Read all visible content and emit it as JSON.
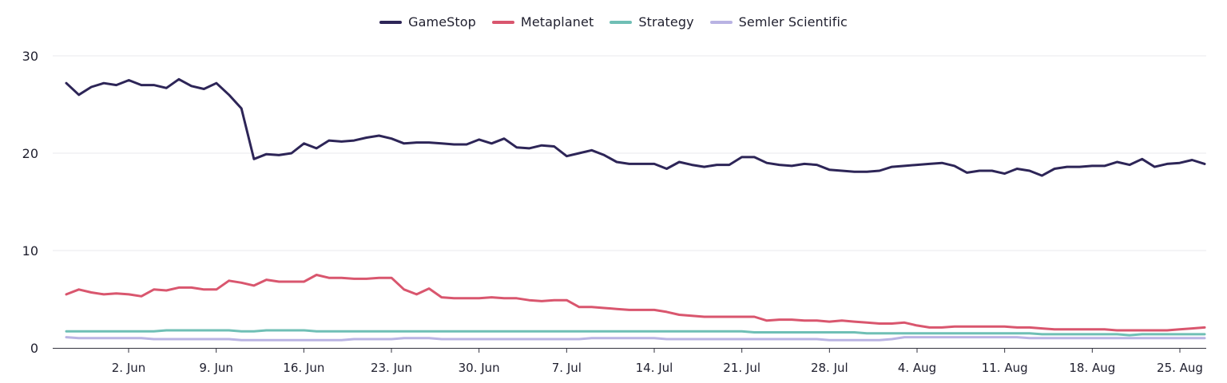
{
  "legend": [
    {
      "name": "GameStop",
      "color": "#2d2557"
    },
    {
      "name": "Metaplanet",
      "color": "#d9566e"
    },
    {
      "name": "Strategy",
      "color": "#6fbfb5"
    },
    {
      "name": "Semler Scientific",
      "color": "#b9b3e3"
    }
  ],
  "chart_data": {
    "type": "line",
    "title": "",
    "xlabel": "",
    "ylabel": "",
    "ylim": [
      0,
      30
    ],
    "yticks": [
      0,
      10,
      20,
      30
    ],
    "grid": true,
    "legend_position": "top-center",
    "x_start": "2025-05-28",
    "x_ticks": [
      {
        "label": "2. Jun",
        "date": "2025-06-02"
      },
      {
        "label": "9. Jun",
        "date": "2025-06-09"
      },
      {
        "label": "16. Jun",
        "date": "2025-06-16"
      },
      {
        "label": "23. Jun",
        "date": "2025-06-23"
      },
      {
        "label": "30. Jun",
        "date": "2025-06-30"
      },
      {
        "label": "7. Jul",
        "date": "2025-07-07"
      },
      {
        "label": "14. Jul",
        "date": "2025-07-14"
      },
      {
        "label": "21. Jul",
        "date": "2025-07-21"
      },
      {
        "label": "28. Jul",
        "date": "2025-07-28"
      },
      {
        "label": "4. Aug",
        "date": "2025-08-04"
      },
      {
        "label": "11. Aug",
        "date": "2025-08-11"
      },
      {
        "label": "18. Aug",
        "date": "2025-08-18"
      },
      {
        "label": "25. Aug",
        "date": "2025-08-25"
      }
    ],
    "series": [
      {
        "name": "GameStop",
        "color": "#2d2557",
        "values": [
          27.2,
          26.0,
          26.8,
          27.2,
          27.0,
          27.5,
          27.0,
          27.0,
          26.7,
          27.6,
          26.9,
          26.6,
          27.2,
          26.0,
          24.6,
          19.4,
          19.9,
          19.8,
          20.0,
          21.0,
          20.5,
          21.3,
          21.2,
          21.3,
          21.6,
          21.8,
          21.5,
          21.0,
          21.1,
          21.1,
          21.0,
          20.9,
          20.9,
          21.4,
          21.0,
          21.5,
          20.6,
          20.5,
          20.8,
          20.7,
          19.7,
          20.0,
          20.3,
          19.8,
          19.1,
          18.9,
          18.9,
          18.9,
          18.4,
          19.1,
          18.8,
          18.6,
          18.8,
          18.8,
          19.6,
          19.6,
          19.0,
          18.8,
          18.7,
          18.9,
          18.8,
          18.3,
          18.2,
          18.1,
          18.1,
          18.2,
          18.6,
          18.7,
          18.8,
          18.9,
          19.0,
          18.7,
          18.0,
          18.2,
          18.2,
          17.9,
          18.4,
          18.2,
          17.7,
          18.4,
          18.6,
          18.6,
          18.7,
          18.7,
          19.1,
          18.8,
          19.4,
          18.6,
          18.9,
          19.0,
          19.3,
          18.9
        ]
      },
      {
        "name": "Metaplanet",
        "color": "#d9566e",
        "values": [
          5.5,
          6.0,
          5.7,
          5.5,
          5.6,
          5.5,
          5.3,
          6.0,
          5.9,
          6.2,
          6.2,
          6.0,
          6.0,
          6.9,
          6.7,
          6.4,
          7.0,
          6.8,
          6.8,
          6.8,
          7.5,
          7.2,
          7.2,
          7.1,
          7.1,
          7.2,
          7.2,
          6.0,
          5.5,
          6.1,
          5.2,
          5.1,
          5.1,
          5.1,
          5.2,
          5.1,
          5.1,
          4.9,
          4.8,
          4.9,
          4.9,
          4.2,
          4.2,
          4.1,
          4.0,
          3.9,
          3.9,
          3.9,
          3.7,
          3.4,
          3.3,
          3.2,
          3.2,
          3.2,
          3.2,
          3.2,
          2.8,
          2.9,
          2.9,
          2.8,
          2.8,
          2.7,
          2.8,
          2.7,
          2.6,
          2.5,
          2.5,
          2.6,
          2.3,
          2.1,
          2.1,
          2.2,
          2.2,
          2.2,
          2.2,
          2.2,
          2.1,
          2.1,
          2.0,
          1.9,
          1.9,
          1.9,
          1.9,
          1.9,
          1.8,
          1.8,
          1.8,
          1.8,
          1.8,
          1.9,
          2.0,
          2.1
        ]
      },
      {
        "name": "Strategy",
        "color": "#6fbfb5",
        "values": [
          1.7,
          1.7,
          1.7,
          1.7,
          1.7,
          1.7,
          1.7,
          1.7,
          1.8,
          1.8,
          1.8,
          1.8,
          1.8,
          1.8,
          1.7,
          1.7,
          1.8,
          1.8,
          1.8,
          1.8,
          1.7,
          1.7,
          1.7,
          1.7,
          1.7,
          1.7,
          1.7,
          1.7,
          1.7,
          1.7,
          1.7,
          1.7,
          1.7,
          1.7,
          1.7,
          1.7,
          1.7,
          1.7,
          1.7,
          1.7,
          1.7,
          1.7,
          1.7,
          1.7,
          1.7,
          1.7,
          1.7,
          1.7,
          1.7,
          1.7,
          1.7,
          1.7,
          1.7,
          1.7,
          1.7,
          1.6,
          1.6,
          1.6,
          1.6,
          1.6,
          1.6,
          1.6,
          1.6,
          1.6,
          1.5,
          1.5,
          1.5,
          1.5,
          1.5,
          1.5,
          1.5,
          1.5,
          1.5,
          1.5,
          1.5,
          1.5,
          1.5,
          1.5,
          1.4,
          1.4,
          1.4,
          1.4,
          1.4,
          1.4,
          1.4,
          1.3,
          1.4,
          1.4,
          1.4,
          1.4,
          1.4,
          1.4
        ]
      },
      {
        "name": "Semler Scientific",
        "color": "#b9b3e3",
        "values": [
          1.1,
          1.0,
          1.0,
          1.0,
          1.0,
          1.0,
          1.0,
          0.9,
          0.9,
          0.9,
          0.9,
          0.9,
          0.9,
          0.9,
          0.8,
          0.8,
          0.8,
          0.8,
          0.8,
          0.8,
          0.8,
          0.8,
          0.8,
          0.9,
          0.9,
          0.9,
          0.9,
          1.0,
          1.0,
          1.0,
          0.9,
          0.9,
          0.9,
          0.9,
          0.9,
          0.9,
          0.9,
          0.9,
          0.9,
          0.9,
          0.9,
          0.9,
          1.0,
          1.0,
          1.0,
          1.0,
          1.0,
          1.0,
          0.9,
          0.9,
          0.9,
          0.9,
          0.9,
          0.9,
          0.9,
          0.9,
          0.9,
          0.9,
          0.9,
          0.9,
          0.9,
          0.8,
          0.8,
          0.8,
          0.8,
          0.8,
          0.9,
          1.1,
          1.1,
          1.1,
          1.1,
          1.1,
          1.1,
          1.1,
          1.1,
          1.1,
          1.1,
          1.0,
          1.0,
          1.0,
          1.0,
          1.0,
          1.0,
          1.0,
          1.0,
          1.0,
          1.0,
          1.0,
          1.0,
          1.0,
          1.0,
          1.0
        ]
      }
    ]
  }
}
